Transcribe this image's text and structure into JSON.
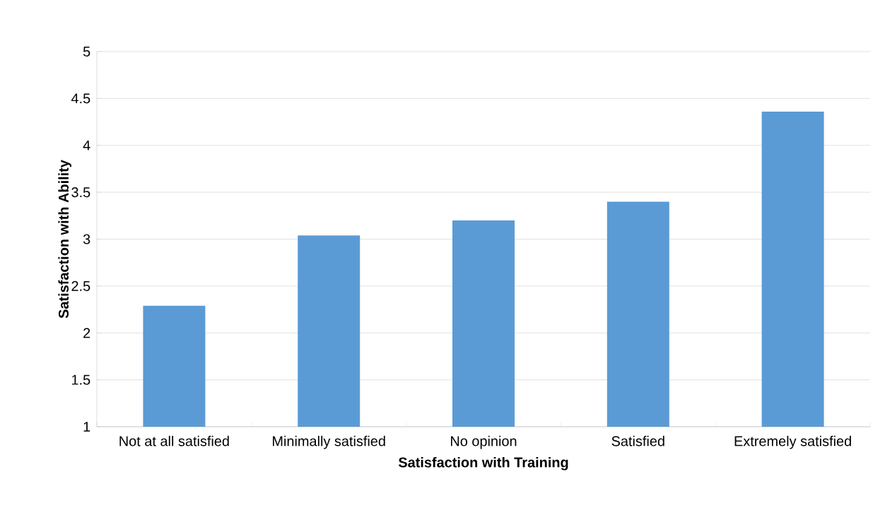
{
  "chart_data": {
    "type": "bar",
    "xlabel": "Satisfaction with Training",
    "ylabel": "Satisfaction with Ability",
    "categories": [
      "Not at all satisfied",
      "Minimally satisfied",
      "No opinion",
      "Satisfied",
      "Extremely satisfied"
    ],
    "values": [
      2.29,
      3.04,
      3.2,
      3.4,
      4.36
    ],
    "color": "#5b9bd5",
    "ylim": [
      1,
      5
    ],
    "yticks": [
      1,
      1.5,
      2,
      2.5,
      3,
      3.5,
      4,
      4.5,
      5
    ],
    "grid": "y"
  }
}
